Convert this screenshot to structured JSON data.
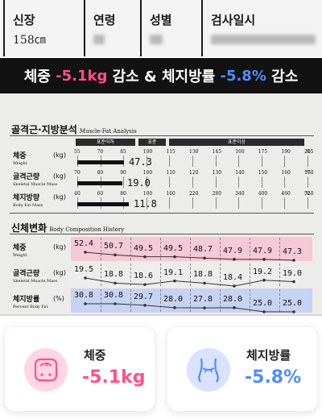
{
  "header": {
    "height_label": "신장",
    "height_value": "158㎝",
    "age_label": "연령",
    "sex_label": "성별",
    "date_label": "검사일시"
  },
  "banner": {
    "weight_label": "체중 ",
    "weight_value": "-5.1kg",
    "mid": " 감소 & 체지방률 ",
    "fat_value": "-5.8%",
    "end": " 감소",
    "weight_color": "#ff4f8b",
    "fat_color": "#4f8cff"
  },
  "analysis": {
    "title": "골격근·지방분석",
    "title_en": "Muscle-Fat Analysis",
    "bands": {
      "low": "표준이하",
      "normal": "표준",
      "high": "표준이상"
    },
    "rows": [
      {
        "label": "체중",
        "sub": "Weight",
        "unit": "(kg)",
        "ticks": [
          "55",
          "70",
          "85",
          "100",
          "115",
          "130",
          "145",
          "160",
          "175",
          "190",
          "205"
        ],
        "percent_sign": "%",
        "value": "47.3",
        "value_num": 47.3
      },
      {
        "label": "골격근량",
        "sub": "Skeletal Muscle Mass",
        "unit": "(kg)",
        "ticks": [
          "70",
          "80",
          "90",
          "100",
          "110",
          "120",
          "130",
          "140",
          "150",
          "160",
          "170"
        ],
        "percent_sign": "%",
        "value": "19.0",
        "value_num": 19.0
      },
      {
        "label": "체지방량",
        "sub": "Body Fat Mass",
        "unit": "(kg)",
        "ticks": [
          "40",
          "60",
          "80",
          "100",
          "160",
          "220",
          "280",
          "340",
          "400",
          "460",
          "520"
        ],
        "percent_sign": "%",
        "value": "11.8",
        "value_num": 11.8
      }
    ]
  },
  "history": {
    "title": "신체변화",
    "title_en": "Body Composition History",
    "rows": [
      {
        "label": "체중",
        "sub": "Weight",
        "unit": "(kg)",
        "color": "#f6c9d6",
        "values": [
          "52.4",
          "50.7",
          "49.5",
          "49.5",
          "48.7",
          "47.9",
          "47.9",
          "47.3"
        ]
      },
      {
        "label": "골격근량",
        "sub": "Skeletal Muscle Mass",
        "unit": "(kg)",
        "color": "#ededeb",
        "values": [
          "19.5",
          "18.8",
          "18.6",
          "19.1",
          "18.8",
          "18.4",
          "19.2",
          "19.0"
        ]
      },
      {
        "label": "체지방률",
        "sub": "Percent Body Fat",
        "unit": "(%)",
        "color": "#c7d3f4",
        "values": [
          "30.8",
          "30.8",
          "29.7",
          "28.0",
          "27.8",
          "28.0",
          "25.0",
          "25.0"
        ]
      }
    ]
  },
  "cards": [
    {
      "title": "체중",
      "value": "-5.1kg",
      "icon": "scale-icon",
      "color": "#ff4f8b"
    },
    {
      "title": "체지방률",
      "value": "-5.8%",
      "icon": "waist-icon",
      "color": "#4f8cff"
    }
  ]
}
